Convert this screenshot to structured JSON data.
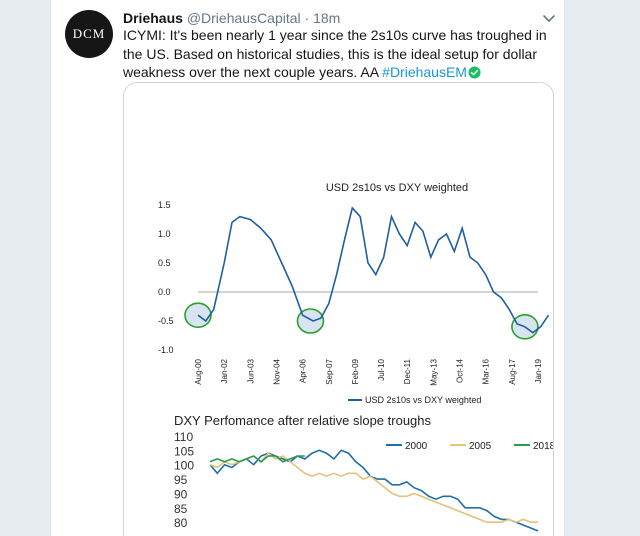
{
  "tweet": {
    "avatar_text": "DCM",
    "name": "Driehaus",
    "handle": "@DriehausCapital",
    "dot": "·",
    "time": "18m",
    "text_before": "ICYMI: It's been nearly 1 year since the 2s10s curve has troughed in the US. Based on historical studies, this is the ideal setup for dollar weakness over the next couple years. AA ",
    "hashtag": "#DriehausEM",
    "icons": [
      "chevron-down-icon",
      "check-circle-icon"
    ],
    "accent_color": "#1b95e0",
    "check_color": "#17bf63"
  },
  "chart_data": [
    {
      "type": "line",
      "title": "USD 2s10s vs DXY weighted",
      "categories": [
        "Aug-00",
        "Jan-02",
        "Jun-03",
        "Nov-04",
        "Apr-06",
        "Sep-07",
        "Feb-09",
        "Jul-10",
        "Dec-11",
        "May-13",
        "Oct-14",
        "Mar-16",
        "Aug-17",
        "Jan-19"
      ],
      "yticks": [
        "1.5",
        "1.0",
        "0.5",
        "0.0",
        "-0.5",
        "-1.0"
      ],
      "ylim": [
        -1.0,
        1.5
      ],
      "legend": "USD 2s10s vs DXY weighted",
      "series": [
        {
          "name": "USD 2s10s vs DXY weighted",
          "color": "#1f5fa0",
          "x": [
            0,
            0.3,
            0.6,
            1.0,
            1.3,
            1.6,
            2.0,
            2.4,
            2.8,
            3.2,
            3.6,
            4.0,
            4.4,
            4.7,
            5.0,
            5.3,
            5.6,
            5.9,
            6.2,
            6.5,
            6.8,
            7.1,
            7.4,
            7.7,
            8.0,
            8.3,
            8.6,
            8.9,
            9.2,
            9.5,
            9.8,
            10.1,
            10.4,
            10.7,
            11.0,
            11.3,
            11.6,
            11.9,
            12.2,
            12.5,
            12.8,
            13.1,
            13.4
          ],
          "values": [
            -0.4,
            -0.5,
            -0.3,
            0.5,
            1.2,
            1.3,
            1.25,
            1.1,
            0.9,
            0.5,
            0.1,
            -0.4,
            -0.5,
            -0.45,
            -0.2,
            0.3,
            0.9,
            1.45,
            1.3,
            0.5,
            0.3,
            0.6,
            1.3,
            1.0,
            0.8,
            1.2,
            1.05,
            0.6,
            0.9,
            1.0,
            0.7,
            1.1,
            0.6,
            0.5,
            0.3,
            0.0,
            -0.1,
            -0.3,
            -0.55,
            -0.6,
            -0.7,
            -0.6,
            -0.4
          ]
        }
      ],
      "highlights": [
        {
          "x": 0,
          "y": -0.4
        },
        {
          "x": 4.3,
          "y": -0.5
        },
        {
          "x": 12.5,
          "y": -0.6
        }
      ],
      "highlight_color": "#2ca02c"
    },
    {
      "type": "line",
      "title": "DXY Perfomance after relative slope troughs",
      "yticks": [
        "110",
        "105",
        "100",
        "95",
        "90",
        "85",
        "80"
      ],
      "ylim": [
        78,
        111
      ],
      "series": [
        {
          "name": "2000",
          "color": "#1f6fa8",
          "x": [
            0,
            2,
            4,
            6,
            8,
            10,
            12,
            14,
            16,
            18,
            20,
            22,
            24,
            26,
            28,
            30,
            32,
            34,
            36,
            38,
            40,
            42,
            44,
            46,
            48,
            50,
            52,
            54,
            56,
            58,
            60,
            62,
            64,
            66,
            68,
            70,
            72,
            74,
            76,
            78,
            80,
            82,
            84,
            86,
            88,
            90
          ],
          "values": [
            100,
            97,
            100,
            99,
            101,
            102,
            100,
            103,
            104,
            103,
            102,
            101,
            103,
            102,
            104,
            105,
            104,
            102,
            105,
            104,
            101,
            99,
            96,
            95,
            95,
            93,
            93,
            94,
            92,
            91,
            89,
            88,
            89,
            89,
            88,
            85,
            85,
            85,
            84,
            82,
            81,
            81,
            80,
            79,
            78,
            77
          ]
        },
        {
          "name": "2005",
          "color": "#e3c27a",
          "x": [
            0,
            2,
            4,
            6,
            8,
            10,
            12,
            14,
            16,
            18,
            20,
            22,
            24,
            26,
            28,
            30,
            32,
            34,
            36,
            38,
            40,
            42,
            44,
            46,
            48,
            50,
            52,
            54,
            56,
            58,
            60,
            62,
            64,
            66,
            68,
            70,
            72,
            74,
            76,
            78,
            80,
            82,
            84,
            86,
            88,
            90
          ],
          "values": [
            100,
            99,
            101,
            100,
            101,
            102,
            103,
            101,
            104,
            102,
            103,
            101,
            99,
            97,
            96,
            97,
            96,
            97,
            96,
            97,
            97,
            95,
            96,
            94,
            92,
            90,
            89,
            89,
            90,
            89,
            88,
            87,
            86,
            85,
            84,
            83,
            82,
            81,
            80,
            80,
            80,
            81,
            80,
            81,
            80,
            80
          ]
        },
        {
          "name": "2018",
          "color": "#2e9a4b",
          "x": [
            0,
            2,
            4,
            6,
            8,
            10,
            12,
            14,
            16,
            18,
            20,
            22,
            24,
            26
          ],
          "values": [
            101,
            102,
            101,
            102,
            101,
            102,
            103,
            101,
            103,
            103,
            101,
            102,
            103,
            103
          ]
        }
      ]
    }
  ]
}
